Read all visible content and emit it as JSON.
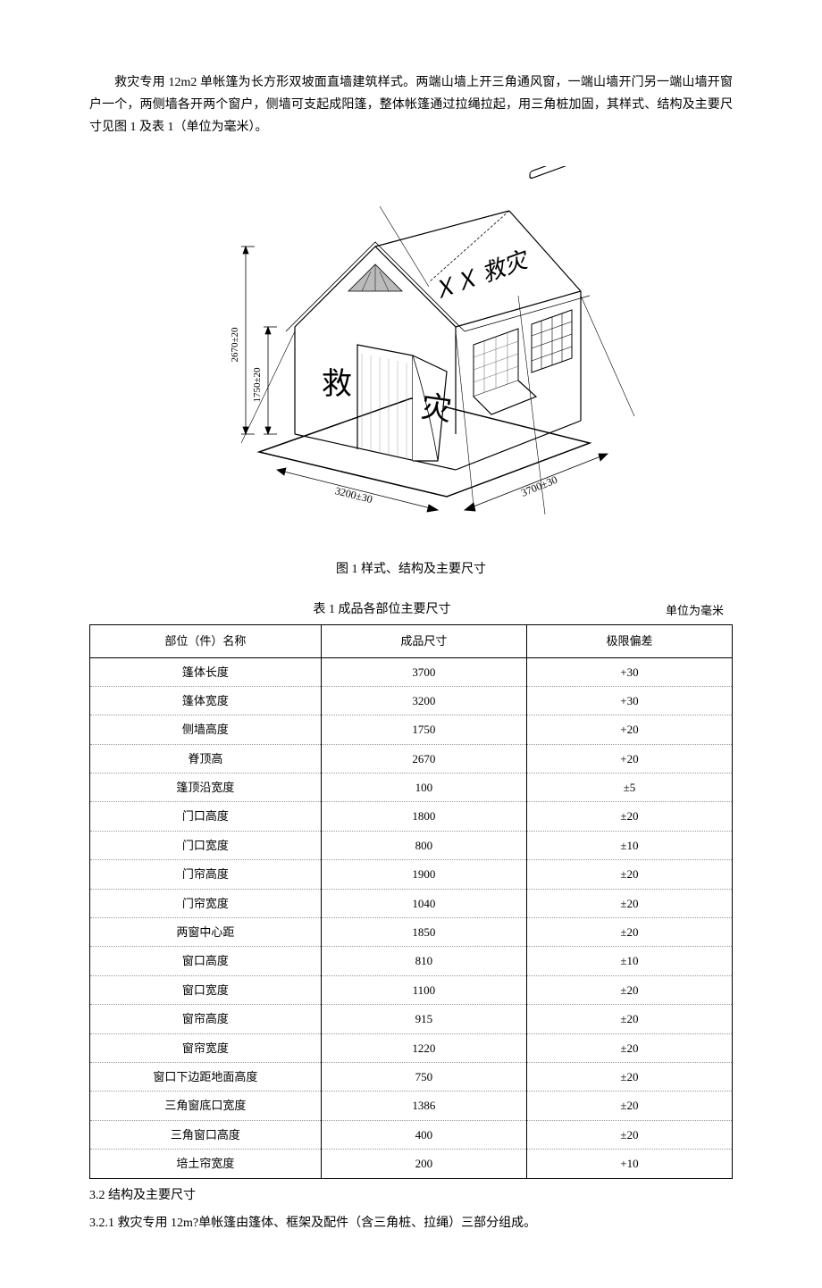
{
  "intro": "救灾专用 12m2 单帐篷为长方形双坡面直墙建筑样式。两端山墙上开三角通风窗，一端山墙开门另一端山墙开窗户一个，两侧墙各开两个窗户，侧墙可支起成阳篷，整体帐篷通过拉绳拉起，用三角桩加固，其样式、结构及主要尺寸见图 1 及表 1（单位为毫米）。",
  "figure": {
    "caption": "图 1 样式、结构及主要尺寸",
    "dim_height_total": "2670±20",
    "dim_height_wall": "1750±20",
    "dim_width": "3200±30",
    "dim_length": "3700±30",
    "label_front_left": "救",
    "label_front_right": "灾",
    "label_roof": "ＸＸ 救灾"
  },
  "table": {
    "title": "表 1 成品各部位主要尺寸",
    "unit": "单位为毫米",
    "columns": [
      "部位（件）名称",
      "成品尺寸",
      "极限偏差"
    ],
    "rows": [
      [
        "篷体长度",
        "3700",
        "+30"
      ],
      [
        "篷体宽度",
        "3200",
        "+30"
      ],
      [
        "侧墙高度",
        "1750",
        "+20"
      ],
      [
        "脊顶高",
        "2670",
        "+20"
      ],
      [
        "篷顶沿宽度",
        "100",
        "±5"
      ],
      [
        "门口高度",
        "1800",
        "±20"
      ],
      [
        "门口宽度",
        "800",
        "±10"
      ],
      [
        "门帘高度",
        "1900",
        "±20"
      ],
      [
        "门帘宽度",
        "1040",
        "±20"
      ],
      [
        "两窗中心距",
        "1850",
        "±20"
      ],
      [
        "窗口高度",
        "810",
        "±10"
      ],
      [
        "窗口宽度",
        "1100",
        "±20"
      ],
      [
        "窗帘高度",
        "915",
        "±20"
      ],
      [
        "窗帘宽度",
        "1220",
        "±20"
      ],
      [
        "窗口下边距地面高度",
        "750",
        "±20"
      ],
      [
        "三角窗底口宽度",
        "1386",
        "±20"
      ],
      [
        "三角窗口高度",
        "400",
        "±20"
      ],
      [
        "培土帘宽度",
        "200",
        "+10"
      ]
    ]
  },
  "sections": {
    "s32": "3.2 结构及主要尺寸",
    "s321": "3.2.1 救灾专用 12m?单帐篷由篷体、框架及配件（含三角桩、拉绳）三部分组成。"
  }
}
